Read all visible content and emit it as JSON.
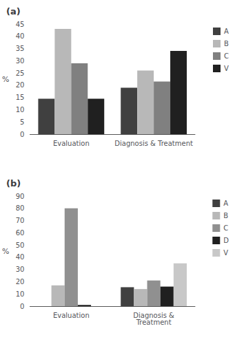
{
  "chart_data": [
    {
      "type": "bar",
      "title": "(a)",
      "ylabel": "%",
      "categories": [
        "Evaluation",
        "Diagnosis & Treatment"
      ],
      "series": [
        {
          "name": "A",
          "color": "#404040",
          "values": [
            14.5,
            19.0
          ]
        },
        {
          "name": "B",
          "color": "#b8b8b8",
          "values": [
            43.0,
            26.0
          ]
        },
        {
          "name": "C",
          "color": "#808080",
          "values": [
            29.0,
            21.5
          ]
        },
        {
          "name": "V",
          "color": "#202020",
          "values": [
            14.5,
            34.0
          ]
        }
      ],
      "ylim": [
        0,
        45
      ],
      "yticks": [
        0,
        5,
        10,
        15,
        20,
        25,
        30,
        35,
        40,
        45
      ],
      "grid": false,
      "legend": "right"
    },
    {
      "type": "bar",
      "title": "(b)",
      "ylabel": "%",
      "categories": [
        "Evaluation",
        "Diagnosis &\nTreatment"
      ],
      "series": [
        {
          "name": "A",
          "color": "#404040",
          "values": [
            0,
            15.5
          ]
        },
        {
          "name": "B",
          "color": "#b8b8b8",
          "values": [
            17.0,
            14.0
          ]
        },
        {
          "name": "C",
          "color": "#909090",
          "values": [
            80.0,
            21.0
          ]
        },
        {
          "name": "D",
          "color": "#202020",
          "values": [
            1.0,
            16.0
          ]
        },
        {
          "name": "V",
          "color": "#c8c8c8",
          "values": [
            0,
            35.0
          ]
        }
      ],
      "ylim": [
        0,
        90
      ],
      "yticks": [
        0,
        10,
        20,
        30,
        40,
        50,
        60,
        70,
        80,
        90
      ],
      "grid": false,
      "legend": "right"
    }
  ]
}
